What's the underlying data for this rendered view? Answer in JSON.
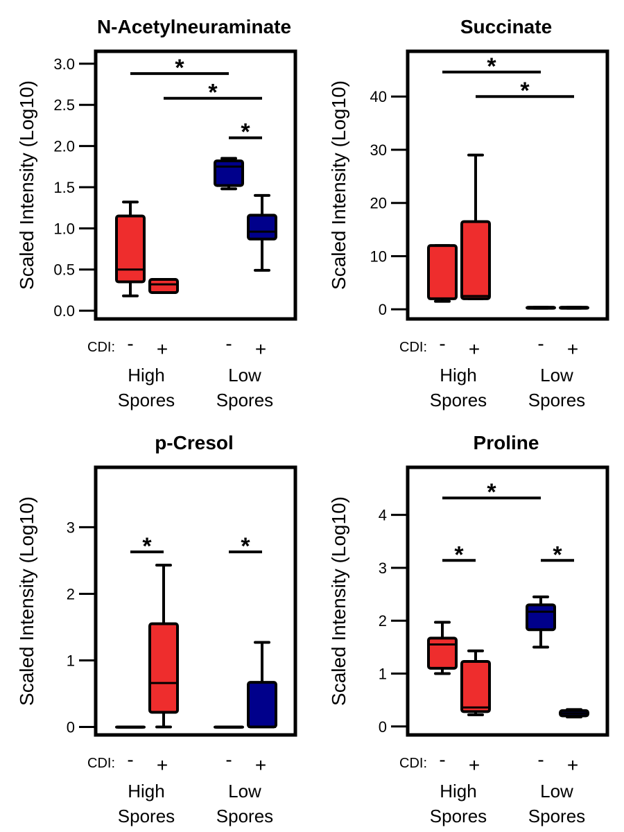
{
  "colors": {
    "high_spores": "#ee2d2d",
    "low_spores": "#00008b",
    "stroke": "#000000"
  },
  "common": {
    "ylabel": "Scaled Intensity (Log10)",
    "cdi_label": "CDI:",
    "cdi_signs": [
      "-",
      "+",
      "-",
      "+"
    ],
    "groups": [
      {
        "line1": "High",
        "line2": "Spores"
      },
      {
        "line1": "Low",
        "line2": "Spores"
      }
    ]
  },
  "chart_data": [
    {
      "type": "box",
      "title": "N-Acetylneuraminate",
      "ylim": [
        -0.1,
        3.15
      ],
      "yticks": [
        0.0,
        0.5,
        1.0,
        1.5,
        2.0,
        2.5,
        3.0
      ],
      "ytick_labels": [
        "0.0",
        "0.5",
        "1.0",
        "1.5",
        "2.0",
        "2.5",
        "3.0"
      ],
      "boxes": [
        {
          "group": "High Spores",
          "cdi": "-",
          "color": "high_spores",
          "whisker_low": 0.18,
          "q1": 0.35,
          "median": 0.5,
          "q3": 1.15,
          "whisker_high": 1.32
        },
        {
          "group": "High Spores",
          "cdi": "+",
          "color": "high_spores",
          "whisker_low": 0.22,
          "q1": 0.22,
          "median": 0.32,
          "q3": 0.38,
          "whisker_high": 0.38
        },
        {
          "group": "Low Spores",
          "cdi": "-",
          "color": "low_spores",
          "whisker_low": 1.48,
          "q1": 1.52,
          "median": 1.75,
          "q3": 1.82,
          "whisker_high": 1.85
        },
        {
          "group": "Low Spores",
          "cdi": "+",
          "color": "low_spores",
          "whisker_low": 0.49,
          "q1": 0.87,
          "median": 0.96,
          "q3": 1.16,
          "whisker_high": 1.4
        }
      ],
      "significance": [
        {
          "from": 0,
          "to": 2,
          "y": 2.88,
          "label": "*"
        },
        {
          "from": 1,
          "to": 3,
          "y": 2.58,
          "label": "*"
        },
        {
          "from": 2,
          "to": 3,
          "y": 2.1,
          "label": "*"
        }
      ]
    },
    {
      "type": "box",
      "title": "Succinate",
      "ylim": [
        -1.8,
        48.5
      ],
      "yticks": [
        0,
        10,
        20,
        30,
        40
      ],
      "ytick_labels": [
        "0",
        "10",
        "20",
        "30",
        "40"
      ],
      "boxes": [
        {
          "group": "High Spores",
          "cdi": "-",
          "color": "high_spores",
          "whisker_low": 1.5,
          "q1": 2.0,
          "median": 2.0,
          "q3": 12.0,
          "whisker_high": 12.0
        },
        {
          "group": "High Spores",
          "cdi": "+",
          "color": "high_spores",
          "whisker_low": 2.0,
          "q1": 2.0,
          "median": 2.5,
          "q3": 16.5,
          "whisker_high": 29.0
        },
        {
          "group": "Low Spores",
          "cdi": "-",
          "color": "low_spores",
          "whisker_low": 0.2,
          "q1": 0.2,
          "median": 0.3,
          "q3": 0.4,
          "whisker_high": 0.4
        },
        {
          "group": "Low Spores",
          "cdi": "+",
          "color": "low_spores",
          "whisker_low": 0.2,
          "q1": 0.2,
          "median": 0.3,
          "q3": 0.4,
          "whisker_high": 0.4
        }
      ],
      "significance": [
        {
          "from": 0,
          "to": 2,
          "y": 44.6,
          "label": "*"
        },
        {
          "from": 1,
          "to": 3,
          "y": 40.0,
          "label": "*"
        }
      ]
    },
    {
      "type": "box",
      "title": "p-Cresol",
      "ylim": [
        -0.12,
        3.9
      ],
      "yticks": [
        0,
        1,
        2,
        3
      ],
      "ytick_labels": [
        "0",
        "1",
        "2",
        "3"
      ],
      "boxes": [
        {
          "group": "High Spores",
          "cdi": "-",
          "color": "high_spores",
          "whisker_low": 0.0,
          "q1": 0.0,
          "median": 0.0,
          "q3": 0.0,
          "whisker_high": 0.0
        },
        {
          "group": "High Spores",
          "cdi": "+",
          "color": "high_spores",
          "whisker_low": 0.0,
          "q1": 0.22,
          "median": 0.66,
          "q3": 1.55,
          "whisker_high": 2.43
        },
        {
          "group": "Low Spores",
          "cdi": "-",
          "color": "low_spores",
          "whisker_low": 0.0,
          "q1": 0.0,
          "median": 0.0,
          "q3": 0.0,
          "whisker_high": 0.0
        },
        {
          "group": "Low Spores",
          "cdi": "+",
          "color": "low_spores",
          "whisker_low": 0.0,
          "q1": 0.0,
          "median": 0.0,
          "q3": 0.67,
          "whisker_high": 1.27
        }
      ],
      "significance": [
        {
          "from": 0,
          "to": 1,
          "y": 2.63,
          "label": "*"
        },
        {
          "from": 2,
          "to": 3,
          "y": 2.63,
          "label": "*"
        }
      ]
    },
    {
      "type": "box",
      "title": "Proline",
      "ylim": [
        -0.16,
        4.9
      ],
      "yticks": [
        0,
        1,
        2,
        3,
        4
      ],
      "ytick_labels": [
        "0",
        "1",
        "2",
        "3",
        "4"
      ],
      "boxes": [
        {
          "group": "High Spores",
          "cdi": "-",
          "color": "high_spores",
          "whisker_low": 1.0,
          "q1": 1.1,
          "median": 1.55,
          "q3": 1.67,
          "whisker_high": 1.97
        },
        {
          "group": "High Spores",
          "cdi": "+",
          "color": "high_spores",
          "whisker_low": 0.22,
          "q1": 0.28,
          "median": 0.36,
          "q3": 1.23,
          "whisker_high": 1.43
        },
        {
          "group": "Low Spores",
          "cdi": "-",
          "color": "low_spores",
          "whisker_low": 1.5,
          "q1": 1.83,
          "median": 2.17,
          "q3": 2.3,
          "whisker_high": 2.45
        },
        {
          "group": "Low Spores",
          "cdi": "+",
          "color": "low_spores",
          "whisker_low": 0.18,
          "q1": 0.2,
          "median": 0.25,
          "q3": 0.3,
          "whisker_high": 0.32
        }
      ],
      "significance": [
        {
          "from": 0,
          "to": 2,
          "y": 4.32,
          "label": "*"
        },
        {
          "from": 0,
          "to": 1,
          "y": 3.14,
          "label": "*"
        },
        {
          "from": 2,
          "to": 3,
          "y": 3.14,
          "label": "*"
        }
      ]
    }
  ]
}
